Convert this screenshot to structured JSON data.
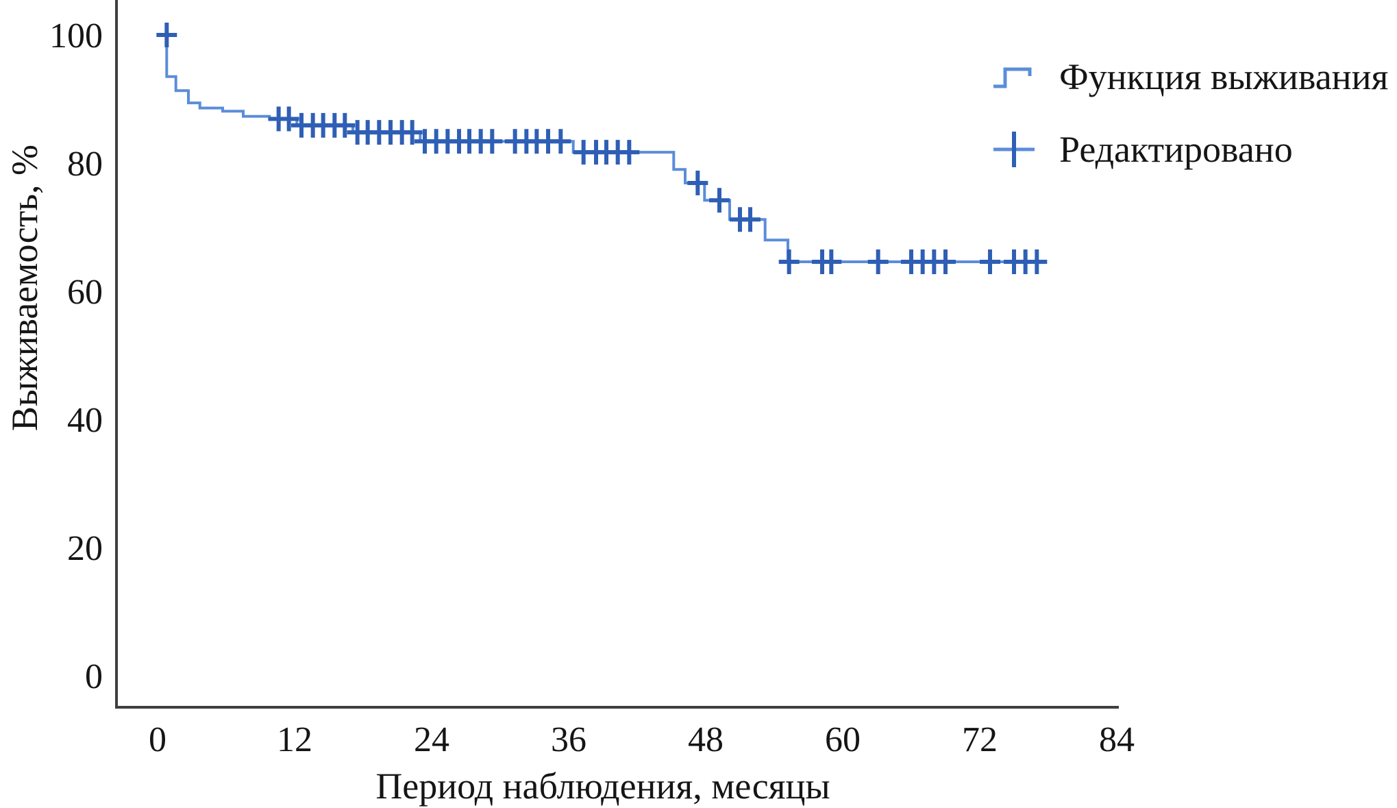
{
  "chart_data": {
    "type": "line",
    "subtype": "kaplan_meier_step_function",
    "title": "",
    "xlabel": "Период наблюдения, месяцы",
    "ylabel": "Выживаемость, %",
    "xlim": [
      0,
      84
    ],
    "ylim": [
      0,
      100
    ],
    "x_ticks": [
      0,
      12,
      24,
      36,
      48,
      60,
      72,
      84
    ],
    "y_ticks": [
      0,
      20,
      40,
      60,
      80,
      100
    ],
    "grid": false,
    "legend_position": "top-right",
    "legend": [
      {
        "label": "Функция выживания",
        "marker": "step-line"
      },
      {
        "label": "Редактировано",
        "marker": "plus-cross"
      }
    ],
    "colors": {
      "line": "#5b8dd9",
      "censor": "#2f5fb5",
      "axis": "#3f3f3f",
      "text": "#151515"
    },
    "series": [
      {
        "name": "Функция выживания",
        "role": "survival-step-curve",
        "points": [
          [
            0.8,
            100
          ],
          [
            0.8,
            93.5
          ],
          [
            1.6,
            93.5
          ],
          [
            1.6,
            91.3
          ],
          [
            2.7,
            91.3
          ],
          [
            2.7,
            89.4
          ],
          [
            3.7,
            89.4
          ],
          [
            3.7,
            88.6
          ],
          [
            5.7,
            88.6
          ],
          [
            5.7,
            88.1
          ],
          [
            7.5,
            88.1
          ],
          [
            7.5,
            87.3
          ],
          [
            9.8,
            87.3
          ],
          [
            9.8,
            86.9
          ],
          [
            12.2,
            86.9
          ],
          [
            12.2,
            85.9
          ],
          [
            17.1,
            85.9
          ],
          [
            17.1,
            84.8
          ],
          [
            23.0,
            84.8
          ],
          [
            23.0,
            83.4
          ],
          [
            36.4,
            83.4
          ],
          [
            36.4,
            81.7
          ],
          [
            45.2,
            81.7
          ],
          [
            45.2,
            79.0
          ],
          [
            46.2,
            79.0
          ],
          [
            46.2,
            76.9
          ],
          [
            47.9,
            76.9
          ],
          [
            47.9,
            74.2
          ],
          [
            50.1,
            74.2
          ],
          [
            50.1,
            71.2
          ],
          [
            53.2,
            71.2
          ],
          [
            53.2,
            68.0
          ],
          [
            55.2,
            68.0
          ],
          [
            55.2,
            64.6
          ],
          [
            77.5,
            64.6
          ]
        ]
      },
      {
        "name": "Редактировано",
        "role": "censored-observations",
        "points": [
          [
            0.8,
            100
          ],
          [
            10.6,
            86.9
          ],
          [
            11.5,
            86.9
          ],
          [
            12.6,
            85.9
          ],
          [
            13.6,
            85.9
          ],
          [
            14.5,
            85.9
          ],
          [
            15.5,
            85.9
          ],
          [
            16.4,
            85.9
          ],
          [
            17.5,
            84.8
          ],
          [
            18.4,
            84.8
          ],
          [
            19.4,
            84.8
          ],
          [
            20.4,
            84.8
          ],
          [
            21.4,
            84.8
          ],
          [
            22.3,
            84.8
          ],
          [
            23.4,
            83.4
          ],
          [
            24.4,
            83.4
          ],
          [
            25.4,
            83.4
          ],
          [
            26.4,
            83.4
          ],
          [
            27.3,
            83.4
          ],
          [
            28.3,
            83.4
          ],
          [
            29.3,
            83.4
          ],
          [
            31.3,
            83.4
          ],
          [
            32.3,
            83.4
          ],
          [
            33.2,
            83.4
          ],
          [
            34.2,
            83.4
          ],
          [
            35.3,
            83.4
          ],
          [
            37.3,
            81.7
          ],
          [
            38.4,
            81.7
          ],
          [
            39.3,
            81.7
          ],
          [
            40.3,
            81.7
          ],
          [
            41.3,
            81.7
          ],
          [
            47.3,
            76.9
          ],
          [
            49.2,
            74.2
          ],
          [
            51.0,
            71.2
          ],
          [
            51.9,
            71.2
          ],
          [
            55.3,
            64.6
          ],
          [
            58.2,
            64.6
          ],
          [
            59.0,
            64.6
          ],
          [
            63.1,
            64.6
          ],
          [
            66.0,
            64.6
          ],
          [
            67.0,
            64.6
          ],
          [
            68.0,
            64.6
          ],
          [
            69.0,
            64.6
          ],
          [
            72.9,
            64.6
          ],
          [
            75.0,
            64.6
          ],
          [
            76.0,
            64.6
          ],
          [
            77.0,
            64.6
          ]
        ]
      }
    ]
  }
}
